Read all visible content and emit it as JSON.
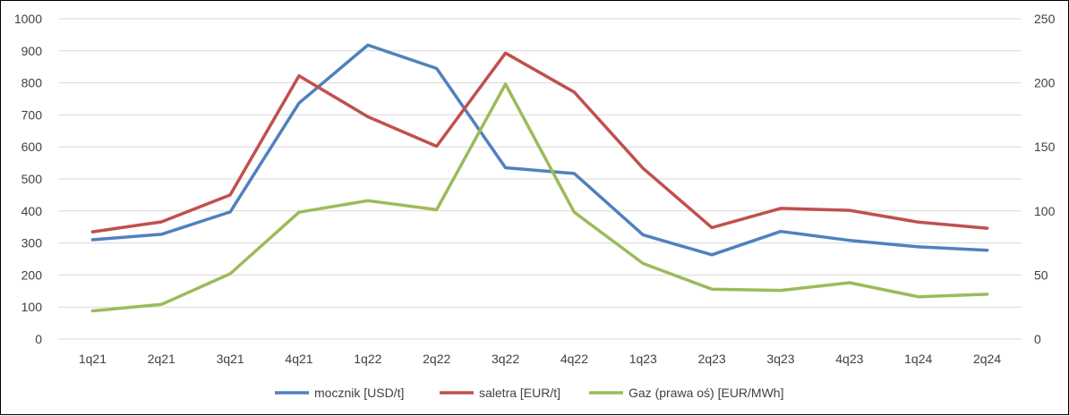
{
  "chart_data": {
    "type": "line",
    "categories": [
      "1q21",
      "2q21",
      "3q21",
      "4q21",
      "1q22",
      "2q22",
      "3q22",
      "4q22",
      "1q23",
      "2q23",
      "3q23",
      "4q23",
      "1q24",
      "2q24"
    ],
    "series": [
      {
        "name": "mocznik [USD/t]",
        "axis": "left",
        "color": "#4F81BD",
        "values": [
          310,
          327,
          397,
          737,
          918,
          845,
          535,
          517,
          325,
          263,
          336,
          308,
          288,
          277
        ]
      },
      {
        "name": "saletra [EUR/t]",
        "axis": "left",
        "color": "#C0504D",
        "values": [
          335,
          366,
          450,
          822,
          694,
          602,
          893,
          771,
          533,
          348,
          408,
          402,
          365,
          346
        ]
      },
      {
        "name": "Gaz (prawa oś) [EUR/MWh]",
        "axis": "right",
        "color": "#9BBB59",
        "values": [
          22,
          27,
          51,
          99,
          108,
          101,
          199,
          99,
          59,
          39,
          38,
          44,
          33,
          35
        ]
      }
    ],
    "y_left": {
      "min": 0,
      "max": 1000,
      "step": 100,
      "ticks": [
        "0",
        "100",
        "200",
        "300",
        "400",
        "500",
        "600",
        "700",
        "800",
        "900",
        "1000"
      ]
    },
    "y_right": {
      "min": 0,
      "max": 250,
      "step": 50,
      "ticks": [
        "0",
        "50",
        "100",
        "150",
        "200",
        "250"
      ]
    },
    "title": "",
    "xlabel": "",
    "ylabel": "",
    "grid": true,
    "gridColor": "#D9D9D9",
    "legend": "bottom"
  }
}
